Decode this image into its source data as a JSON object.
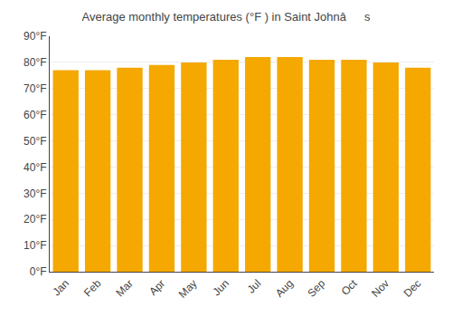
{
  "chart_data": {
    "type": "bar",
    "title": "Average monthly temperatures (°F ) in Saint Johnâs",
    "categories": [
      "Jan",
      "Feb",
      "Mar",
      "Apr",
      "May",
      "Jun",
      "Jul",
      "Aug",
      "Sep",
      "Oct",
      "Nov",
      "Dec"
    ],
    "values": [
      77,
      77,
      78,
      79,
      80,
      81,
      82,
      82,
      81,
      81,
      80,
      78
    ],
    "color": "#F5A800",
    "ylim": [
      0,
      90
    ],
    "yticks": [
      {
        "value": 0,
        "label": "0°F"
      },
      {
        "value": 10,
        "label": "10°F"
      },
      {
        "value": 20,
        "label": "20°F"
      },
      {
        "value": 30,
        "label": "30°F"
      },
      {
        "value": 40,
        "label": "40°F"
      },
      {
        "value": 50,
        "label": "50°F"
      },
      {
        "value": 60,
        "label": "60°F"
      },
      {
        "value": 70,
        "label": "70°F"
      },
      {
        "value": 80,
        "label": "80°F"
      },
      {
        "value": 90,
        "label": "90°F"
      }
    ],
    "grid": true
  }
}
